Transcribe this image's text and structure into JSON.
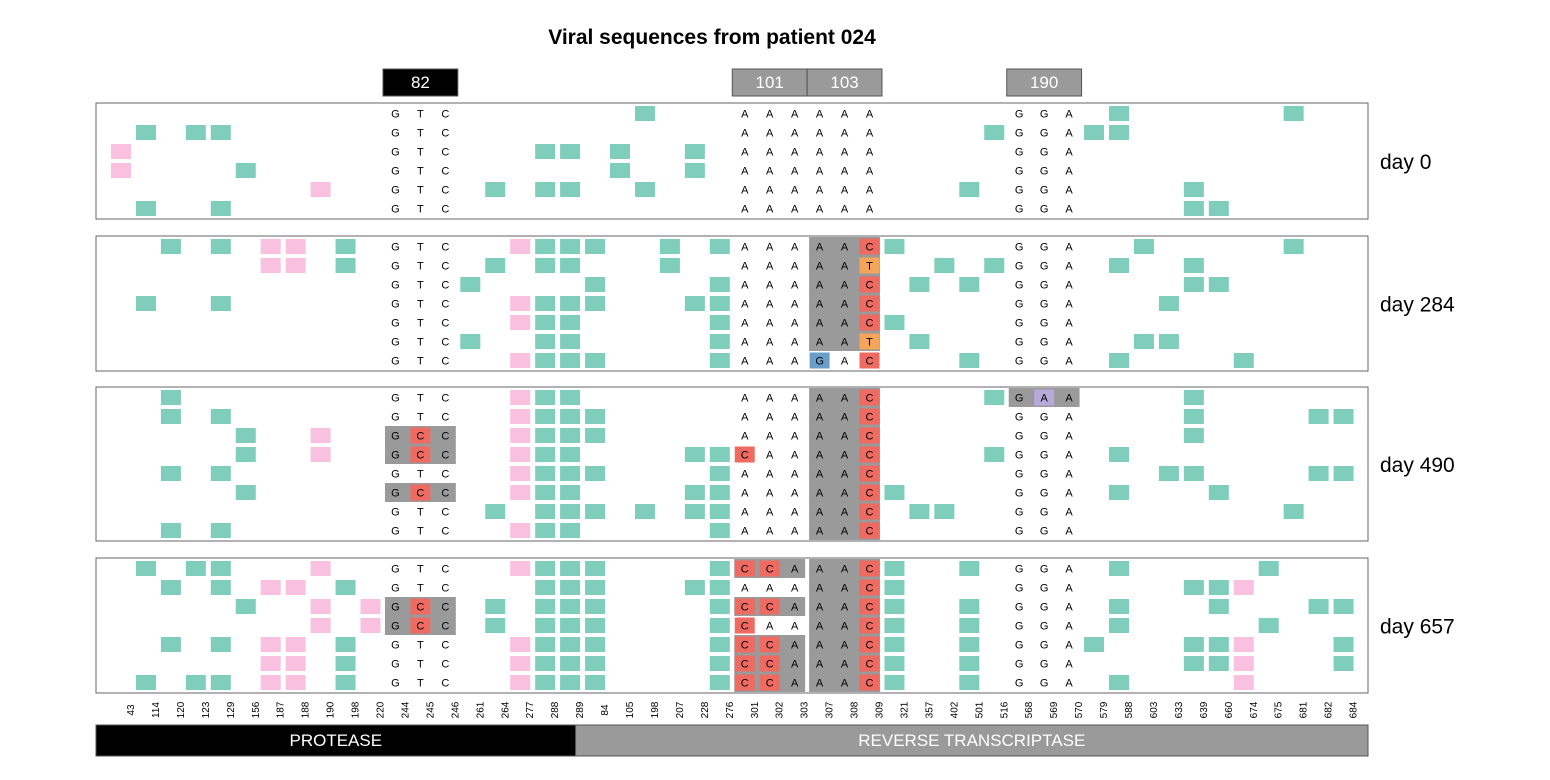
{
  "title": "Viral sequences from patient 024",
  "colors": {
    "teal": "#7fcdbb",
    "pink": "#f9c0e0",
    "red": "#ef6b61",
    "orange": "#f4a55a",
    "blue": "#6a9ec9",
    "purple": "#b7a9d9",
    "grey": "#9a9a9a",
    "black": "#000000"
  },
  "chart_data": {
    "type": "table",
    "positions": [
      "43",
      "114",
      "120",
      "123",
      "129",
      "156",
      "187",
      "188",
      "190",
      "198",
      "220",
      "244",
      "245",
      "246",
      "261",
      "264",
      "277",
      "288",
      "289",
      "84",
      "105",
      "198",
      "207",
      "228",
      "276",
      "301",
      "302",
      "303",
      "307",
      "308",
      "309",
      "321",
      "357",
      "402",
      "501",
      "516",
      "568",
      "569",
      "570",
      "579",
      "588",
      "603",
      "633",
      "639",
      "660",
      "674",
      "675",
      "681",
      "682",
      "684"
    ],
    "codon_labels": [
      {
        "label": "82",
        "columns": [
          11,
          12,
          13
        ],
        "style": "black"
      },
      {
        "label": "101",
        "columns": [
          25,
          26,
          27
        ],
        "style": "grey"
      },
      {
        "label": "103",
        "columns": [
          28,
          29,
          30
        ],
        "style": "grey"
      },
      {
        "label": "190",
        "columns": [
          36,
          37,
          38
        ],
        "style": "grey"
      }
    ],
    "genes": [
      {
        "label": "PROTEASE",
        "from_column": 0,
        "to_column": 18,
        "style": "black"
      },
      {
        "label": "REVERSE TRANSCRIPTASE",
        "from_column": 19,
        "to_column": 49,
        "style": "grey"
      }
    ],
    "samples": [
      {
        "label": "day 0",
        "rows": [
          {
            "teal": [
              21,
              40,
              47
            ],
            "pink": [],
            "codons": [
              "GTC",
              "AAA",
              "AAA",
              "GGA"
            ],
            "hl": [],
            "mut": []
          },
          {
            "teal": [
              1,
              3,
              4,
              35,
              39,
              40
            ],
            "pink": [],
            "codons": [
              "GTC",
              "AAA",
              "AAA",
              "GGA"
            ],
            "hl": [],
            "mut": []
          },
          {
            "teal": [
              17,
              18,
              20,
              23
            ],
            "pink": [
              0
            ],
            "codons": [
              "GTC",
              "AAA",
              "AAA",
              "GGA"
            ],
            "hl": [],
            "mut": []
          },
          {
            "teal": [
              5,
              20,
              23
            ],
            "pink": [
              0
            ],
            "codons": [
              "GTC",
              "AAA",
              "AAA",
              "GGA"
            ],
            "hl": [],
            "mut": []
          },
          {
            "teal": [
              15,
              17,
              18,
              21,
              34,
              43
            ],
            "pink": [
              8
            ],
            "codons": [
              "GTC",
              "AAA",
              "AAA",
              "GGA"
            ],
            "hl": [],
            "mut": []
          },
          {
            "teal": [
              1,
              4,
              43,
              44
            ],
            "pink": [],
            "codons": [
              "GTC",
              "AAA",
              "AAA",
              "GGA"
            ],
            "hl": [],
            "mut": []
          }
        ]
      },
      {
        "label": "day 284",
        "rows": [
          {
            "teal": [
              2,
              4,
              9,
              17,
              18,
              19,
              22,
              24,
              31,
              41,
              47
            ],
            "pink": [
              6,
              7,
              16
            ],
            "codons": [
              "GTC",
              "AAA",
              "AAC",
              "GGA"
            ],
            "hl": [
              2
            ],
            "mut": [
              [
                30,
                "red"
              ]
            ]
          },
          {
            "teal": [
              9,
              15,
              17,
              18,
              22,
              33,
              35,
              40,
              43
            ],
            "pink": [
              6,
              7
            ],
            "codons": [
              "GTC",
              "AAA",
              "AAT",
              "GGA"
            ],
            "hl": [
              2
            ],
            "mut": [
              [
                30,
                "orange"
              ]
            ]
          },
          {
            "teal": [
              14,
              19,
              24,
              32,
              34,
              43,
              44
            ],
            "pink": [],
            "codons": [
              "GTC",
              "AAA",
              "AAC",
              "GGA"
            ],
            "hl": [
              2
            ],
            "mut": [
              [
                30,
                "red"
              ]
            ]
          },
          {
            "teal": [
              1,
              4,
              17,
              18,
              19,
              23,
              24,
              42
            ],
            "pink": [
              16
            ],
            "codons": [
              "GTC",
              "AAA",
              "AAC",
              "GGA"
            ],
            "hl": [
              2
            ],
            "mut": [
              [
                30,
                "red"
              ]
            ]
          },
          {
            "teal": [
              17,
              18,
              24,
              31
            ],
            "pink": [
              16
            ],
            "codons": [
              "GTC",
              "AAA",
              "AAC",
              "GGA"
            ],
            "hl": [
              2
            ],
            "mut": [
              [
                30,
                "red"
              ]
            ]
          },
          {
            "teal": [
              14,
              17,
              18,
              24,
              32,
              41,
              42
            ],
            "pink": [],
            "codons": [
              "GTC",
              "AAA",
              "AAT",
              "GGA"
            ],
            "hl": [
              2
            ],
            "mut": [
              [
                30,
                "orange"
              ]
            ]
          },
          {
            "teal": [
              17,
              18,
              19,
              24,
              34,
              40,
              45
            ],
            "pink": [
              16
            ],
            "codons": [
              "GTC",
              "AAA",
              "GAC",
              "GGA"
            ],
            "hl": [],
            "mut": [
              [
                28,
                "blue"
              ],
              [
                30,
                "red"
              ]
            ]
          }
        ]
      },
      {
        "label": "day 490",
        "rows": [
          {
            "teal": [
              2,
              17,
              18,
              35,
              43
            ],
            "pink": [
              16
            ],
            "codons": [
              "GTC",
              "AAA",
              "AAC",
              "GAA"
            ],
            "hl": [
              2,
              3
            ],
            "mut": [
              [
                30,
                "red"
              ],
              [
                37,
                "purple"
              ]
            ]
          },
          {
            "teal": [
              2,
              4,
              17,
              18,
              19,
              43,
              48,
              49
            ],
            "pink": [
              16
            ],
            "codons": [
              "GTC",
              "AAA",
              "AAC",
              "GGA"
            ],
            "hl": [
              2
            ],
            "mut": [
              [
                30,
                "red"
              ]
            ]
          },
          {
            "teal": [
              5,
              17,
              18,
              19,
              43
            ],
            "pink": [
              8,
              16
            ],
            "codons": [
              "GCC",
              "AAA",
              "AAC",
              "GGA"
            ],
            "hl": [
              0,
              2
            ],
            "mut": [
              [
                12,
                "red"
              ],
              [
                30,
                "red"
              ]
            ]
          },
          {
            "teal": [
              5,
              17,
              18,
              23,
              24,
              35,
              40
            ],
            "pink": [
              8,
              16
            ],
            "codons": [
              "GCC",
              "CAA",
              "AAC",
              "GGA"
            ],
            "hl": [
              0,
              2
            ],
            "mut": [
              [
                12,
                "red"
              ],
              [
                25,
                "red"
              ],
              [
                30,
                "red"
              ]
            ]
          },
          {
            "teal": [
              2,
              4,
              17,
              18,
              19,
              24,
              42,
              43,
              48,
              49
            ],
            "pink": [
              16
            ],
            "codons": [
              "GTC",
              "AAA",
              "AAC",
              "GGA"
            ],
            "hl": [
              2
            ],
            "mut": [
              [
                30,
                "red"
              ]
            ]
          },
          {
            "teal": [
              5,
              17,
              18,
              23,
              24,
              31,
              40,
              44
            ],
            "pink": [
              16
            ],
            "codons": [
              "GCC",
              "AAA",
              "AAC",
              "GGA"
            ],
            "hl": [
              0,
              2
            ],
            "mut": [
              [
                12,
                "red"
              ],
              [
                30,
                "red"
              ]
            ]
          },
          {
            "teal": [
              15,
              17,
              18,
              19,
              21,
              23,
              24,
              32,
              33,
              47
            ],
            "pink": [],
            "codons": [
              "GTC",
              "AAA",
              "AAC",
              "GGA"
            ],
            "hl": [
              2
            ],
            "mut": [
              [
                30,
                "red"
              ]
            ]
          },
          {
            "teal": [
              2,
              4,
              17,
              18,
              24
            ],
            "pink": [
              16
            ],
            "codons": [
              "GTC",
              "AAA",
              "AAC",
              "GGA"
            ],
            "hl": [
              2
            ],
            "mut": [
              [
                30,
                "red"
              ]
            ]
          }
        ]
      },
      {
        "label": "day 657",
        "rows": [
          {
            "teal": [
              1,
              3,
              4,
              17,
              18,
              19,
              24,
              31,
              34,
              40,
              46
            ],
            "pink": [
              8,
              16
            ],
            "codons": [
              "GTC",
              "CCA",
              "AAC",
              "GGA"
            ],
            "hl": [
              1,
              2
            ],
            "mut": [
              [
                25,
                "red"
              ],
              [
                26,
                "red"
              ],
              [
                30,
                "red"
              ]
            ]
          },
          {
            "teal": [
              2,
              4,
              9,
              17,
              18,
              19,
              23,
              24,
              31,
              43,
              44
            ],
            "pink": [
              6,
              7,
              45
            ],
            "codons": [
              "GTC",
              "AAA",
              "AAC",
              "GGA"
            ],
            "hl": [
              2
            ],
            "mut": [
              [
                30,
                "red"
              ]
            ]
          },
          {
            "teal": [
              5,
              15,
              17,
              18,
              19,
              24,
              31,
              34,
              40,
              44,
              48,
              49
            ],
            "pink": [
              8,
              10
            ],
            "codons": [
              "GCC",
              "CCA",
              "AAC",
              "GGA"
            ],
            "hl": [
              0,
              1,
              2
            ],
            "mut": [
              [
                12,
                "red"
              ],
              [
                25,
                "red"
              ],
              [
                26,
                "red"
              ],
              [
                30,
                "red"
              ]
            ]
          },
          {
            "teal": [
              15,
              17,
              18,
              19,
              24,
              31,
              34,
              40,
              46
            ],
            "pink": [
              8,
              10
            ],
            "codons": [
              "GCC",
              "CAA",
              "AAC",
              "GGA"
            ],
            "hl": [
              0,
              2
            ],
            "mut": [
              [
                12,
                "red"
              ],
              [
                25,
                "red"
              ],
              [
                30,
                "red"
              ]
            ]
          },
          {
            "teal": [
              2,
              4,
              9,
              17,
              18,
              19,
              24,
              31,
              34,
              39,
              43,
              44,
              49
            ],
            "pink": [
              6,
              7,
              16,
              45
            ],
            "codons": [
              "GTC",
              "CCA",
              "AAC",
              "GGA"
            ],
            "hl": [
              1,
              2
            ],
            "mut": [
              [
                25,
                "red"
              ],
              [
                26,
                "red"
              ],
              [
                30,
                "red"
              ]
            ]
          },
          {
            "teal": [
              9,
              17,
              18,
              19,
              24,
              31,
              34,
              43,
              44,
              49
            ],
            "pink": [
              6,
              7,
              16,
              45
            ],
            "codons": [
              "GTC",
              "CCA",
              "AAC",
              "GGA"
            ],
            "hl": [
              1,
              2
            ],
            "mut": [
              [
                25,
                "red"
              ],
              [
                26,
                "red"
              ],
              [
                30,
                "red"
              ]
            ]
          },
          {
            "teal": [
              1,
              3,
              4,
              9,
              17,
              18,
              19,
              24,
              31,
              34,
              40
            ],
            "pink": [
              6,
              7,
              16,
              45
            ],
            "codons": [
              "GTC",
              "CCA",
              "AAC",
              "GGA"
            ],
            "hl": [
              1,
              2
            ],
            "mut": [
              [
                25,
                "red"
              ],
              [
                26,
                "red"
              ],
              [
                30,
                "red"
              ]
            ]
          }
        ]
      }
    ]
  }
}
